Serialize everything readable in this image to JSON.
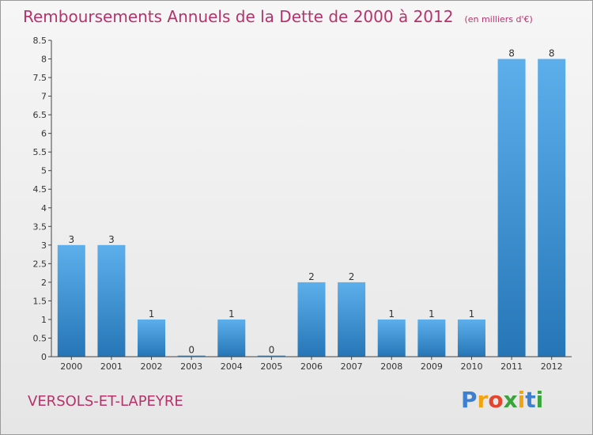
{
  "header": {
    "title": "Remboursements Annuels de la Dette de 2000 à 2012",
    "subtitle": "(en milliers d'€)"
  },
  "footer": {
    "commune": "VERSOLS-ET-LAPEYRE",
    "logo": "Proxiti"
  },
  "colors": {
    "title": "#b5336b",
    "bar_top": "#5dafec",
    "bar_bottom": "#2676b7",
    "logo_letters": [
      "#3d7fd0",
      "#f2a40f",
      "#e3452d",
      "#3ba33b",
      "#f2a40f",
      "#3d7fd0",
      "#3ba33b"
    ]
  },
  "chart_data": {
    "type": "bar",
    "title": "Remboursements Annuels de la Dette de 2000 à 2012",
    "subtitle": "(en milliers d'€)",
    "categories": [
      "2000",
      "2001",
      "2002",
      "2003",
      "2004",
      "2005",
      "2006",
      "2007",
      "2008",
      "2009",
      "2010",
      "2011",
      "2012"
    ],
    "values": [
      3,
      3,
      1,
      0,
      1,
      0,
      2,
      2,
      1,
      1,
      1,
      8,
      8
    ],
    "data_labels": [
      "3",
      "3",
      "1",
      "0",
      "1",
      "0",
      "2",
      "2",
      "1",
      "1",
      "1",
      "8",
      "8"
    ],
    "ylim": [
      0,
      8.5
    ],
    "yticks": [
      "0",
      "0.5",
      "1",
      "1.5",
      "2",
      "2.5",
      "3",
      "3.5",
      "4",
      "4.5",
      "5",
      "5.5",
      "6",
      "6.5",
      "7",
      "7.5",
      "8",
      "8.5"
    ],
    "grid": false,
    "legend": "none"
  }
}
